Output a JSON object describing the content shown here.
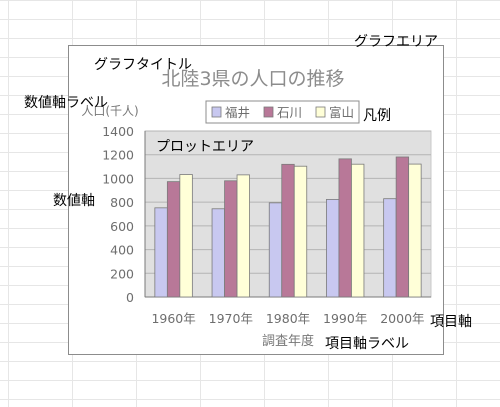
{
  "annotations": {
    "chart_area": "グラフエリア",
    "chart_title": "グラフタイトル",
    "value_axis_label": "数値軸ラベル",
    "legend": "凡例",
    "plot_area": "プロットエリア",
    "value_axis": "数値軸",
    "category_axis": "項目軸",
    "category_axis_label": "項目軸ラベル"
  },
  "chart_data": {
    "type": "bar",
    "title": "北陸3県の人口の推移",
    "ylabel": "人口(千人)",
    "xlabel": "調査年度",
    "categories": [
      "1960年",
      "1970年",
      "1980年",
      "1990年",
      "2000年"
    ],
    "ylim": [
      0,
      1400
    ],
    "yticks": [
      0,
      200,
      400,
      600,
      800,
      1000,
      1200,
      1400
    ],
    "grid": true,
    "legend_position": "top",
    "series": [
      {
        "name": "福井",
        "values": [
          752,
          744,
          794,
          823,
          829
        ],
        "color": "#c8c8f0"
      },
      {
        "name": "石川",
        "values": [
          973,
          980,
          1119,
          1165,
          1181
        ],
        "color": "#b87898"
      },
      {
        "name": "富山",
        "values": [
          1033,
          1030,
          1103,
          1120,
          1121
        ],
        "color": "#ffffd8"
      }
    ]
  }
}
